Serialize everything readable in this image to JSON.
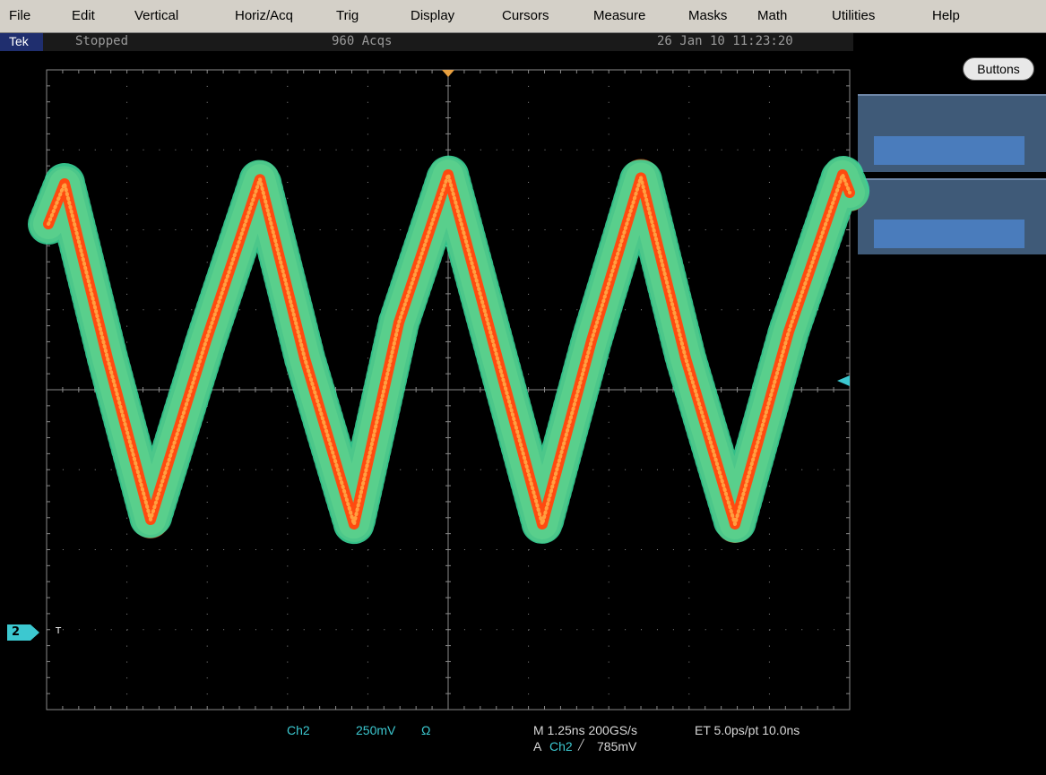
{
  "menu": [
    "File",
    "Edit",
    "Vertical",
    "Horiz/Acq",
    "Trig",
    "Display",
    "Cursors",
    "Measure",
    "Masks",
    "Math",
    "Utilities",
    "Help"
  ],
  "status": {
    "brand": "Tek",
    "state": "Stopped",
    "acquisitions": "960 Acqs",
    "timestamp": "26 Jan 10 11:23:20"
  },
  "side_panel": {
    "button": "Buttons"
  },
  "markers": {
    "channel": "2",
    "trigger": "T"
  },
  "readout": {
    "channel": "Ch2",
    "scale": "250mV",
    "coupling": "Ω",
    "timebase": "M 1.25ns 200GS/s",
    "equivalent_time": "ET 5.0ps/pt 10.0ns",
    "trigger_prefix": "A",
    "trigger_source": "Ch2",
    "trigger_slope": "╱",
    "trigger_level": "785mV"
  }
}
